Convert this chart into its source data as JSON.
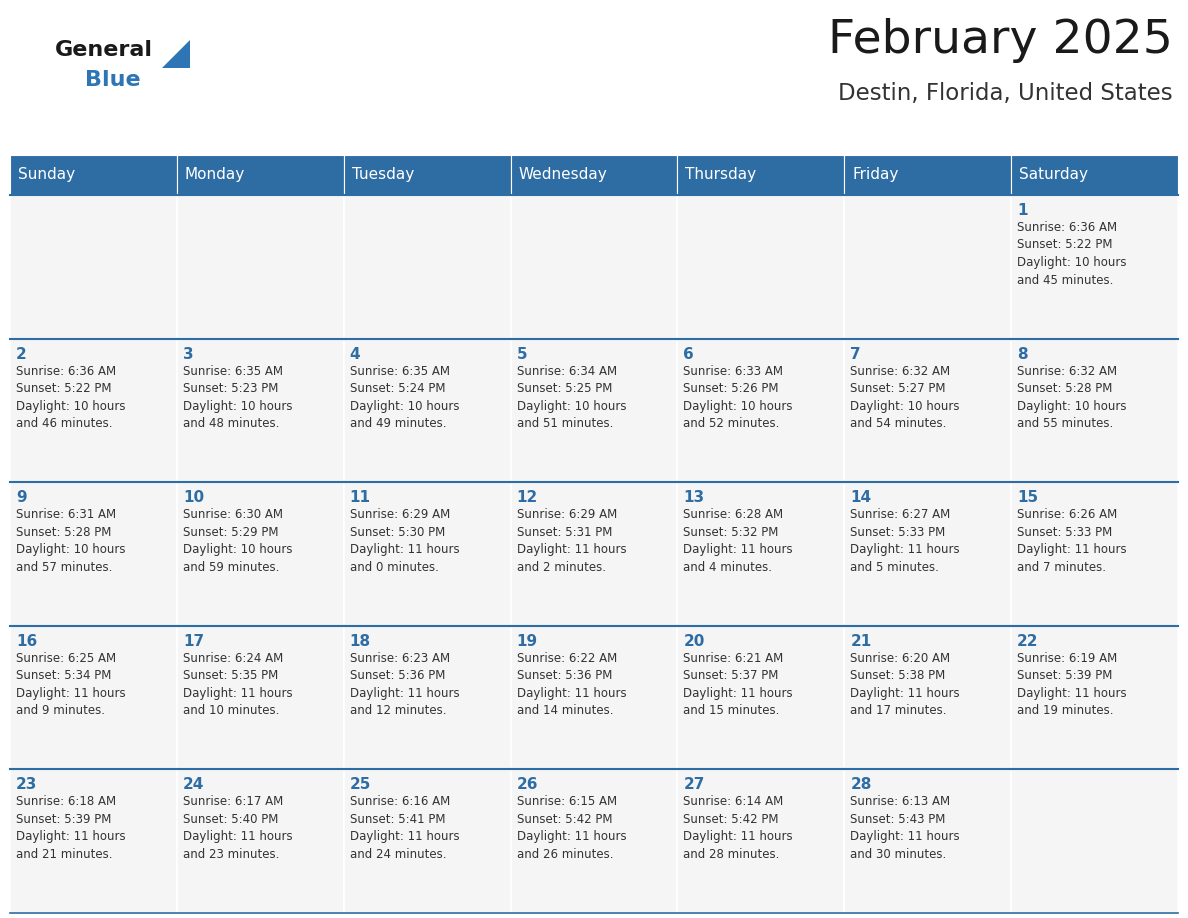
{
  "title": "February 2025",
  "subtitle": "Destin, Florida, United States",
  "days_of_week": [
    "Sunday",
    "Monday",
    "Tuesday",
    "Wednesday",
    "Thursday",
    "Friday",
    "Saturday"
  ],
  "header_bg": "#2E6DA4",
  "header_text": "#FFFFFF",
  "cell_bg": "#F5F5F5",
  "border_color": "#2E6DA4",
  "day_num_color": "#2E6DA4",
  "info_text_color": "#333333",
  "title_color": "#1a1a1a",
  "subtitle_color": "#333333",
  "logo_general_color": "#1a1a1a",
  "logo_blue_color": "#2E75B6",
  "weeks": [
    [
      {
        "day": null,
        "info": ""
      },
      {
        "day": null,
        "info": ""
      },
      {
        "day": null,
        "info": ""
      },
      {
        "day": null,
        "info": ""
      },
      {
        "day": null,
        "info": ""
      },
      {
        "day": null,
        "info": ""
      },
      {
        "day": 1,
        "info": "Sunrise: 6:36 AM\nSunset: 5:22 PM\nDaylight: 10 hours\nand 45 minutes."
      }
    ],
    [
      {
        "day": 2,
        "info": "Sunrise: 6:36 AM\nSunset: 5:22 PM\nDaylight: 10 hours\nand 46 minutes."
      },
      {
        "day": 3,
        "info": "Sunrise: 6:35 AM\nSunset: 5:23 PM\nDaylight: 10 hours\nand 48 minutes."
      },
      {
        "day": 4,
        "info": "Sunrise: 6:35 AM\nSunset: 5:24 PM\nDaylight: 10 hours\nand 49 minutes."
      },
      {
        "day": 5,
        "info": "Sunrise: 6:34 AM\nSunset: 5:25 PM\nDaylight: 10 hours\nand 51 minutes."
      },
      {
        "day": 6,
        "info": "Sunrise: 6:33 AM\nSunset: 5:26 PM\nDaylight: 10 hours\nand 52 minutes."
      },
      {
        "day": 7,
        "info": "Sunrise: 6:32 AM\nSunset: 5:27 PM\nDaylight: 10 hours\nand 54 minutes."
      },
      {
        "day": 8,
        "info": "Sunrise: 6:32 AM\nSunset: 5:28 PM\nDaylight: 10 hours\nand 55 minutes."
      }
    ],
    [
      {
        "day": 9,
        "info": "Sunrise: 6:31 AM\nSunset: 5:28 PM\nDaylight: 10 hours\nand 57 minutes."
      },
      {
        "day": 10,
        "info": "Sunrise: 6:30 AM\nSunset: 5:29 PM\nDaylight: 10 hours\nand 59 minutes."
      },
      {
        "day": 11,
        "info": "Sunrise: 6:29 AM\nSunset: 5:30 PM\nDaylight: 11 hours\nand 0 minutes."
      },
      {
        "day": 12,
        "info": "Sunrise: 6:29 AM\nSunset: 5:31 PM\nDaylight: 11 hours\nand 2 minutes."
      },
      {
        "day": 13,
        "info": "Sunrise: 6:28 AM\nSunset: 5:32 PM\nDaylight: 11 hours\nand 4 minutes."
      },
      {
        "day": 14,
        "info": "Sunrise: 6:27 AM\nSunset: 5:33 PM\nDaylight: 11 hours\nand 5 minutes."
      },
      {
        "day": 15,
        "info": "Sunrise: 6:26 AM\nSunset: 5:33 PM\nDaylight: 11 hours\nand 7 minutes."
      }
    ],
    [
      {
        "day": 16,
        "info": "Sunrise: 6:25 AM\nSunset: 5:34 PM\nDaylight: 11 hours\nand 9 minutes."
      },
      {
        "day": 17,
        "info": "Sunrise: 6:24 AM\nSunset: 5:35 PM\nDaylight: 11 hours\nand 10 minutes."
      },
      {
        "day": 18,
        "info": "Sunrise: 6:23 AM\nSunset: 5:36 PM\nDaylight: 11 hours\nand 12 minutes."
      },
      {
        "day": 19,
        "info": "Sunrise: 6:22 AM\nSunset: 5:36 PM\nDaylight: 11 hours\nand 14 minutes."
      },
      {
        "day": 20,
        "info": "Sunrise: 6:21 AM\nSunset: 5:37 PM\nDaylight: 11 hours\nand 15 minutes."
      },
      {
        "day": 21,
        "info": "Sunrise: 6:20 AM\nSunset: 5:38 PM\nDaylight: 11 hours\nand 17 minutes."
      },
      {
        "day": 22,
        "info": "Sunrise: 6:19 AM\nSunset: 5:39 PM\nDaylight: 11 hours\nand 19 minutes."
      }
    ],
    [
      {
        "day": 23,
        "info": "Sunrise: 6:18 AM\nSunset: 5:39 PM\nDaylight: 11 hours\nand 21 minutes."
      },
      {
        "day": 24,
        "info": "Sunrise: 6:17 AM\nSunset: 5:40 PM\nDaylight: 11 hours\nand 23 minutes."
      },
      {
        "day": 25,
        "info": "Sunrise: 6:16 AM\nSunset: 5:41 PM\nDaylight: 11 hours\nand 24 minutes."
      },
      {
        "day": 26,
        "info": "Sunrise: 6:15 AM\nSunset: 5:42 PM\nDaylight: 11 hours\nand 26 minutes."
      },
      {
        "day": 27,
        "info": "Sunrise: 6:14 AM\nSunset: 5:42 PM\nDaylight: 11 hours\nand 28 minutes."
      },
      {
        "day": 28,
        "info": "Sunrise: 6:13 AM\nSunset: 5:43 PM\nDaylight: 11 hours\nand 30 minutes."
      },
      {
        "day": null,
        "info": ""
      }
    ]
  ],
  "figsize": [
    11.88,
    9.18
  ],
  "dpi": 100
}
